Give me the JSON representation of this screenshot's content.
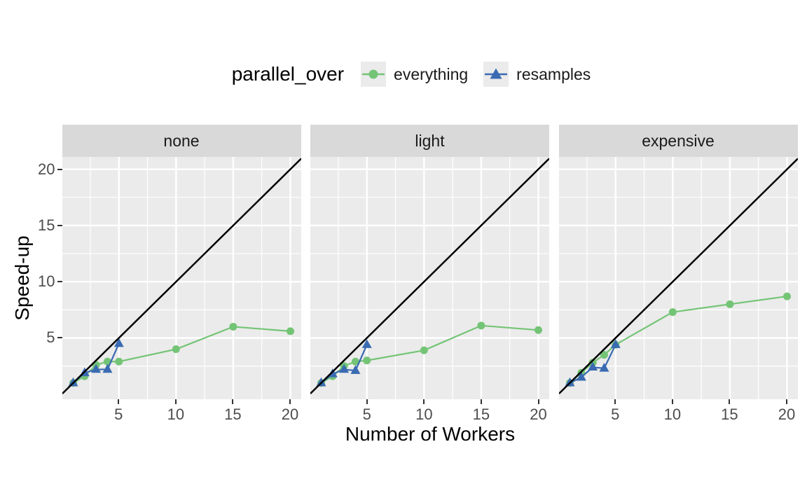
{
  "legend": {
    "title": "parallel_over",
    "items": [
      {
        "label": "everything",
        "shape": "circle",
        "color": "#74c476"
      },
      {
        "label": "resamples",
        "shape": "triangle",
        "color": "#3a6bb2"
      }
    ]
  },
  "axes": {
    "x_label": "Number of Workers",
    "y_label": "Speed-up",
    "x_ticks": [
      5,
      10,
      15,
      20
    ],
    "y_ticks": [
      5,
      10,
      15,
      20
    ]
  },
  "colors": {
    "panel_bg": "#ebebeb",
    "strip_bg": "#d9d9d9",
    "grid": "#ffffff",
    "tick_text": "#4d4d4d",
    "strip_text": "#1a1a1a",
    "axis_title_text": "#000000",
    "everything": "#74c476",
    "resamples": "#3a6bb2",
    "reference_line": "#000000",
    "legend_key_bg": "#ebebeb"
  },
  "chart_data": {
    "type": "line",
    "title": "",
    "xlabel": "Number of Workers",
    "ylabel": "Speed-up",
    "legend_title": "parallel_over",
    "legend_position": "top",
    "grid": "on",
    "x_range": [
      0.05,
      20.95
    ],
    "y_range": [
      -0.45,
      21.1
    ],
    "x_ticks": [
      5,
      10,
      15,
      20
    ],
    "y_ticks": [
      5,
      10,
      15,
      20
    ],
    "minor_ticks": [
      2.5,
      7.5,
      12.5,
      17.5
    ],
    "reference_line": {
      "type": "abline",
      "slope": 1,
      "intercept": 0,
      "color": "#000000"
    },
    "facets": [
      {
        "label": "none",
        "series": [
          {
            "name": "everything",
            "marker": "circle",
            "color": "#74c476",
            "x": [
              1,
              2,
              3,
              4,
              5,
              10,
              15,
              20
            ],
            "y": [
              1.0,
              1.6,
              2.6,
              2.9,
              2.9,
              4.0,
              6.0,
              5.6
            ]
          },
          {
            "name": "resamples",
            "marker": "triangle",
            "color": "#3a6bb2",
            "x": [
              1,
              2,
              3,
              4,
              5
            ],
            "y": [
              1.0,
              1.9,
              2.2,
              2.2,
              4.5
            ]
          }
        ]
      },
      {
        "label": "light",
        "series": [
          {
            "name": "everything",
            "marker": "circle",
            "color": "#74c476",
            "x": [
              1,
              2,
              3,
              4,
              5,
              10,
              15,
              20
            ],
            "y": [
              1.0,
              1.6,
              2.5,
              2.9,
              3.0,
              3.9,
              6.1,
              5.7
            ]
          },
          {
            "name": "resamples",
            "marker": "triangle",
            "color": "#3a6bb2",
            "x": [
              1,
              2,
              3,
              4,
              5
            ],
            "y": [
              1.0,
              1.8,
              2.2,
              2.1,
              4.4
            ]
          }
        ]
      },
      {
        "label": "expensive",
        "series": [
          {
            "name": "everything",
            "marker": "circle",
            "color": "#74c476",
            "x": [
              1,
              2,
              3,
              4,
              5,
              10,
              15,
              20
            ],
            "y": [
              1.0,
              1.9,
              2.8,
              3.5,
              4.4,
              7.3,
              8.0,
              8.7
            ]
          },
          {
            "name": "resamples",
            "marker": "triangle",
            "color": "#3a6bb2",
            "x": [
              1,
              2,
              3,
              4,
              5
            ],
            "y": [
              1.0,
              1.5,
              2.4,
              2.3,
              4.4
            ]
          }
        ]
      }
    ]
  }
}
